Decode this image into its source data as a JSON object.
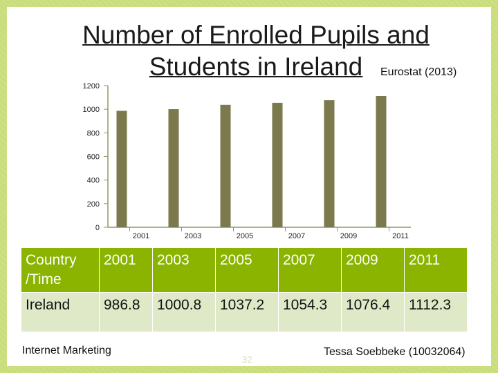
{
  "slide": {
    "title": "Number of Enrolled Pupils and Students in Ireland",
    "source": "Eurostat (2013)",
    "footer_left": "Internet Marketing",
    "page_number": "32",
    "footer_right": "Tessa Soebbeke (10032064)"
  },
  "table": {
    "header_label": "Country /Time",
    "row_label": "Ireland",
    "years": [
      "2001",
      "2003",
      "2005",
      "2007",
      "2009",
      "2011"
    ],
    "values": [
      "986.8",
      "1000.8",
      "1037.2",
      "1054.3",
      "1076.4",
      "1112.3"
    ]
  },
  "chart_data": {
    "type": "bar",
    "categories": [
      "2001",
      "2003",
      "2005",
      "2007",
      "2009",
      "2011"
    ],
    "values": [
      986.8,
      1000.8,
      1037.2,
      1054.3,
      1076.4,
      1112.3
    ],
    "ylim": [
      0,
      1200
    ],
    "yticks": [
      "0",
      "200",
      "400",
      "600",
      "800",
      "1000",
      "1200"
    ],
    "grid": false,
    "legend": "none",
    "bar_color": "#7a7a4e"
  }
}
